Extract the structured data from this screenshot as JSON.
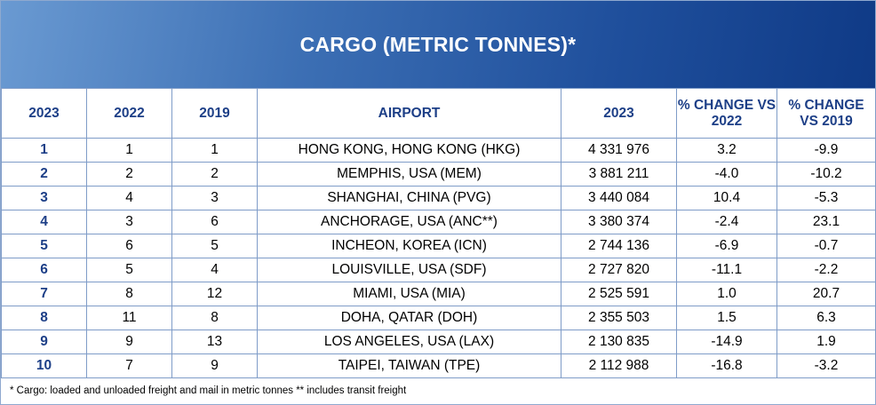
{
  "title": "CARGO (METRIC TONNES)*",
  "columns": [
    "2023",
    "2022",
    "2019",
    "AIRPORT",
    "2023",
    "% CHANGE VS 2022",
    "% CHANGE VS 2019"
  ],
  "rows": [
    [
      "1",
      "1",
      "1",
      "HONG KONG, HONG KONG (HKG)",
      "4 331 976",
      "3.2",
      "-9.9"
    ],
    [
      "2",
      "2",
      "2",
      "MEMPHIS,  USA (MEM)",
      "3 881 211",
      "-4.0",
      "-10.2"
    ],
    [
      "3",
      "4",
      "3",
      "SHANGHAI, CHINA (PVG)",
      "3 440 084",
      "10.4",
      "-5.3"
    ],
    [
      "4",
      "3",
      "6",
      "ANCHORAGE, USA (ANC**)",
      "3 380 374",
      "-2.4",
      "23.1"
    ],
    [
      "5",
      "6",
      "5",
      "INCHEON, KOREA (ICN)",
      "2 744 136",
      "-6.9",
      "-0.7"
    ],
    [
      "6",
      "5",
      "4",
      "LOUISVILLE,  USA (SDF)",
      "2 727 820",
      "-11.1",
      "-2.2"
    ],
    [
      "7",
      "8",
      "12",
      "MIAMI,  USA (MIA)",
      "2 525 591",
      "1.0",
      "20.7"
    ],
    [
      "8",
      "11",
      "8",
      "DOHA, QATAR (DOH)",
      "2 355 503",
      "1.5",
      "6.3"
    ],
    [
      "9",
      "9",
      "13",
      "LOS ANGELES, USA (LAX)",
      "2 130 835",
      "-14.9",
      "1.9"
    ],
    [
      "10",
      "7",
      "9",
      "TAIPEI, TAIWAN (TPE)",
      "2 112 988",
      "-16.8",
      "-3.2"
    ]
  ],
  "footnote": "* Cargo: loaded and unloaded freight and mail in metric tonnes ** includes transit freight",
  "colors": {
    "banner_dark": "#0f3a86",
    "banner_light": "#6a9ad2",
    "header_text": "#1d3f87",
    "grid": "#7f9cc8"
  }
}
